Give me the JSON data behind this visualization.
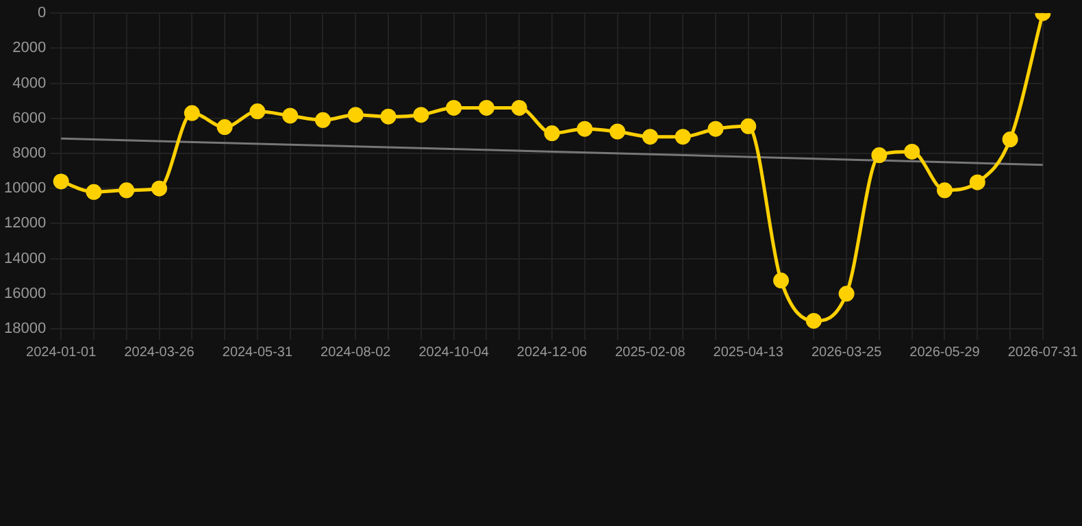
{
  "chart_data": {
    "type": "line",
    "categories": [
      "2024-01-01",
      null,
      null,
      "2024-03-26",
      null,
      null,
      "2024-05-31",
      null,
      null,
      "2024-08-02",
      null,
      null,
      "2024-10-04",
      null,
      null,
      "2024-12-06",
      null,
      null,
      "2025-02-08",
      null,
      null,
      "2025-04-13",
      null,
      null,
      "2026-03-25",
      null,
      null,
      "2026-05-29",
      null,
      null,
      "2026-07-31"
    ],
    "series": [
      {
        "color": "#ffd000",
        "values": [
          9600,
          10200,
          10100,
          10000,
          5700,
          6500,
          5600,
          5850,
          6100,
          5800,
          5900,
          5800,
          5400,
          5400,
          5400,
          6850,
          6600,
          6750,
          7050,
          7050,
          6600,
          6450,
          15250,
          17550,
          16000,
          8100,
          7900,
          10100,
          9650,
          7200,
          0
        ],
        "marker": "circle"
      },
      {
        "type": "line",
        "color": "#777777",
        "marker": "none",
        "values": [
          7150,
          null,
          null,
          null,
          null,
          null,
          null,
          null,
          null,
          null,
          null,
          null,
          null,
          null,
          null,
          null,
          null,
          null,
          null,
          null,
          null,
          null,
          null,
          null,
          null,
          null,
          null,
          null,
          null,
          null,
          8650
        ]
      }
    ],
    "ylim": [
      18000,
      0
    ],
    "yticks": [
      0,
      2000,
      4000,
      6000,
      8000,
      10000,
      12000,
      14000,
      16000,
      18000
    ],
    "grid": true,
    "line_style": "solid"
  }
}
